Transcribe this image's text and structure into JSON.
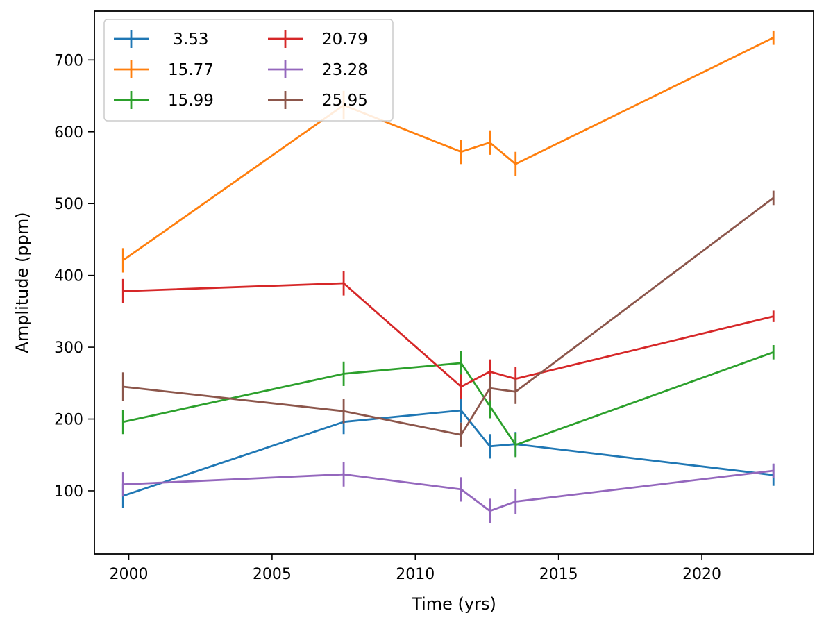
{
  "chart_data": {
    "type": "line",
    "title": "",
    "xlabel": "Time (yrs)",
    "ylabel": "Amplitude (ppm)",
    "xlim": [
      1998.8,
      2023.9
    ],
    "ylim": [
      12,
      768
    ],
    "xticks": [
      2000,
      2005,
      2010,
      2015,
      2020
    ],
    "yticks": [
      100,
      200,
      300,
      400,
      500,
      600,
      700
    ],
    "xtick_labels": [
      "2000",
      "2005",
      "2010",
      "2015",
      "2020"
    ],
    "ytick_labels": [
      "100",
      "200",
      "300",
      "400",
      "500",
      "600",
      "700"
    ],
    "grid": false,
    "legend": {
      "placement": "top-left",
      "columns": 2
    },
    "series": [
      {
        "name": " 3.53",
        "color": "#1f77b4",
        "x": [
          1999.8,
          2007.5,
          2011.6,
          2012.6,
          2013.5,
          2022.5
        ],
        "y": [
          93,
          196,
          212,
          162,
          165,
          122
        ],
        "err": [
          17,
          17,
          17,
          17,
          17,
          15
        ]
      },
      {
        "name": "15.77",
        "color": "#ff7f0e",
        "x": [
          1999.8,
          2007.5,
          2011.6,
          2012.6,
          2013.5,
          2022.5
        ],
        "y": [
          421,
          637,
          572,
          585,
          555,
          731
        ],
        "err": [
          17,
          20,
          17,
          17,
          17,
          10
        ]
      },
      {
        "name": "15.99",
        "color": "#2ca02c",
        "x": [
          1999.8,
          2007.5,
          2011.6,
          2012.6,
          2013.5,
          2022.5
        ],
        "y": [
          196,
          263,
          278,
          218,
          164,
          293
        ],
        "err": [
          17,
          17,
          17,
          17,
          17,
          10
        ]
      },
      {
        "name": "20.79",
        "color": "#d62728",
        "x": [
          1999.8,
          2007.5,
          2011.6,
          2012.6,
          2013.5,
          2022.5
        ],
        "y": [
          378,
          389,
          245,
          266,
          256,
          343
        ],
        "err": [
          17,
          17,
          17,
          17,
          17,
          8
        ]
      },
      {
        "name": "23.28",
        "color": "#9467bd",
        "x": [
          1999.8,
          2007.5,
          2011.6,
          2012.6,
          2013.5,
          2022.5
        ],
        "y": [
          109,
          123,
          102,
          72,
          85,
          128
        ],
        "err": [
          17,
          17,
          17,
          17,
          17,
          10
        ]
      },
      {
        "name": "25.95",
        "color": "#8c564b",
        "x": [
          1999.8,
          2007.5,
          2011.6,
          2012.6,
          2013.5,
          2022.5
        ],
        "y": [
          245,
          211,
          178,
          243,
          238,
          508
        ],
        "err": [
          20,
          17,
          17,
          17,
          17,
          10
        ]
      }
    ]
  }
}
